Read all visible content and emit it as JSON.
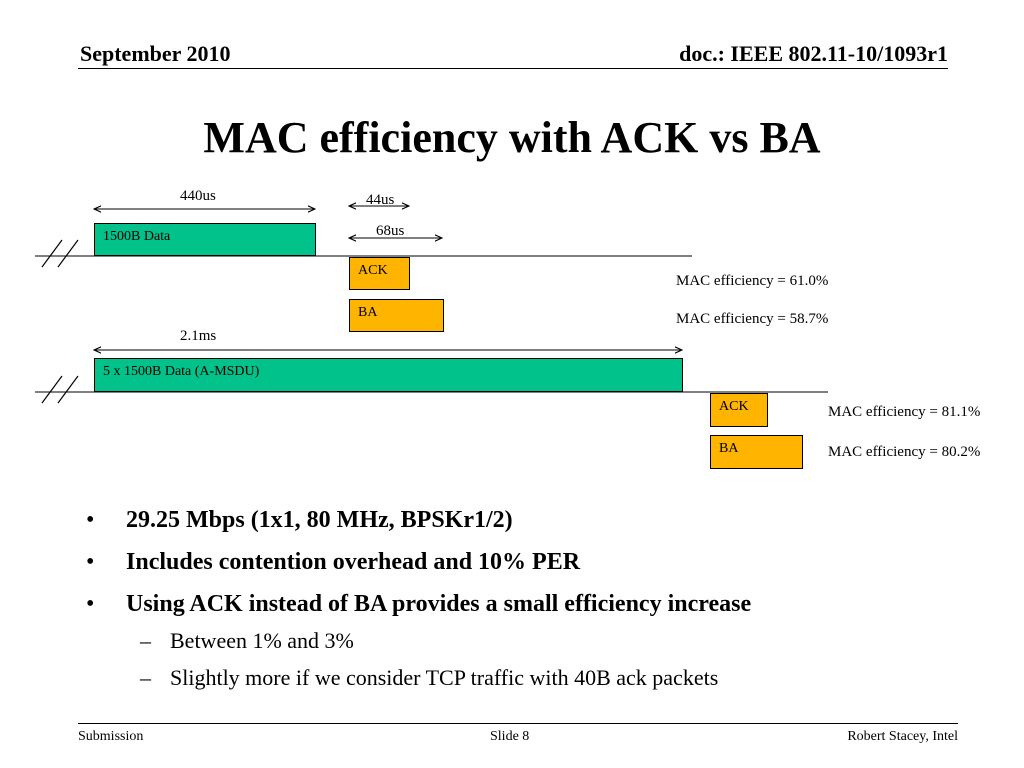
{
  "header": {
    "date": "September 2010",
    "doc": "doc.: IEEE 802.11-10/1093r1"
  },
  "title": "MAC efficiency with ACK vs BA",
  "diagram": {
    "top": {
      "data_duration": "440us",
      "ack_duration": "44us",
      "ba_duration": "68us",
      "data_block": "1500B Data",
      "ack_block": "ACK",
      "ba_block": "BA",
      "ack_efficiency": "MAC efficiency = 61.0%",
      "ba_efficiency": "MAC efficiency = 58.7%"
    },
    "bottom": {
      "data_duration": "2.1ms",
      "data_block": "5 x 1500B Data (A-MSDU)",
      "ack_block": "ACK",
      "ba_block": "BA",
      "ack_efficiency": "MAC efficiency = 81.1%",
      "ba_efficiency": "MAC efficiency = 80.2%"
    },
    "colors": {
      "data": "#00c28a",
      "response": "#ffb400"
    }
  },
  "bullets": [
    {
      "text": "29.25 Mbps (1x1, 80 MHz, BPSKr1/2)"
    },
    {
      "text": "Includes contention overhead and 10% PER"
    },
    {
      "text": "Using ACK instead of BA provides a small efficiency increase",
      "sub": [
        "Between 1% and 3%",
        "Slightly more if we consider TCP traffic with 40B ack packets"
      ]
    }
  ],
  "footer": {
    "left": "Submission",
    "center": "Slide 8",
    "right": "Robert Stacey, Intel"
  }
}
